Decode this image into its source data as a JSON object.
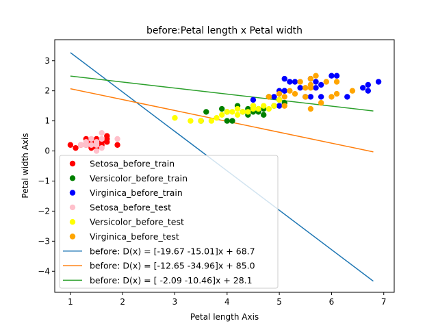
{
  "chart_data": {
    "type": "scatter",
    "title": "before:Petal length x Petal width",
    "xlabel": "Petal length Axis",
    "ylabel": "Petal width Axis",
    "xlim": [
      0.7,
      7.2
    ],
    "ylim": [
      -4.7,
      3.7
    ],
    "xticks": [
      1,
      2,
      3,
      4,
      5,
      6,
      7
    ],
    "xtick_labels": [
      "1",
      "2",
      "3",
      "4",
      "5",
      "6",
      "7"
    ],
    "yticks": [
      -4,
      -3,
      -2,
      -1,
      0,
      1,
      2,
      3
    ],
    "ytick_labels": [
      "−4",
      "−3",
      "−2",
      "−1",
      "0",
      "1",
      "2",
      "3"
    ],
    "grid": false,
    "legend_position": "lower-left",
    "scatter_series": [
      {
        "name": "Setosa_before_train",
        "color": "#ff0000",
        "points": [
          [
            1.0,
            0.2
          ],
          [
            1.1,
            0.1
          ],
          [
            1.2,
            0.2
          ],
          [
            1.3,
            0.4
          ],
          [
            1.3,
            0.2
          ],
          [
            1.4,
            0.3
          ],
          [
            1.4,
            0.1
          ],
          [
            1.5,
            0.2
          ],
          [
            1.5,
            0.4
          ],
          [
            1.6,
            0.2
          ],
          [
            1.7,
            0.4
          ],
          [
            1.7,
            0.3
          ],
          [
            1.7,
            0.5
          ],
          [
            1.9,
            0.2
          ],
          [
            1.5,
            0.1
          ],
          [
            1.6,
            0.3
          ]
        ]
      },
      {
        "name": "Versicolor_before_train",
        "color": "#008000",
        "points": [
          [
            3.5,
            1.0
          ],
          [
            3.6,
            1.3
          ],
          [
            3.9,
            1.4
          ],
          [
            4.0,
            1.0
          ],
          [
            4.0,
            1.3
          ],
          [
            4.1,
            1.0
          ],
          [
            4.2,
            1.5
          ],
          [
            4.3,
            1.3
          ],
          [
            4.4,
            1.4
          ],
          [
            4.5,
            1.5
          ],
          [
            4.5,
            1.3
          ],
          [
            4.6,
            1.4
          ],
          [
            4.7,
            1.4
          ],
          [
            4.7,
            1.2
          ],
          [
            4.8,
            1.8
          ],
          [
            4.9,
            1.5
          ],
          [
            5.0,
            1.7
          ],
          [
            5.1,
            1.6
          ],
          [
            4.6,
            1.3
          ],
          [
            4.4,
            1.2
          ]
        ]
      },
      {
        "name": "Virginica_before_train",
        "color": "#0000ff",
        "points": [
          [
            4.5,
            1.7
          ],
          [
            4.9,
            1.8
          ],
          [
            5.0,
            2.0
          ],
          [
            5.1,
            2.4
          ],
          [
            5.1,
            2.0
          ],
          [
            5.2,
            2.3
          ],
          [
            5.3,
            2.3
          ],
          [
            5.4,
            2.1
          ],
          [
            5.5,
            1.8
          ],
          [
            5.6,
            2.4
          ],
          [
            5.6,
            1.8
          ],
          [
            5.7,
            2.3
          ],
          [
            5.8,
            2.2
          ],
          [
            5.8,
            1.8
          ],
          [
            6.0,
            2.5
          ],
          [
            6.1,
            2.5
          ],
          [
            6.3,
            1.8
          ],
          [
            6.6,
            2.1
          ],
          [
            6.7,
            2.2
          ],
          [
            6.7,
            2.0
          ],
          [
            6.9,
            2.3
          ],
          [
            5.1,
            2.0
          ],
          [
            5.0,
            1.5
          ],
          [
            5.7,
            2.1
          ]
        ]
      },
      {
        "name": "Setosa_before_test",
        "color": "#ffc0cb",
        "points": [
          [
            1.2,
            0.2
          ],
          [
            1.3,
            0.3
          ],
          [
            1.4,
            0.2
          ],
          [
            1.4,
            0.4
          ],
          [
            1.5,
            0.3
          ],
          [
            1.5,
            0.2
          ],
          [
            1.6,
            0.6
          ],
          [
            1.6,
            0.1
          ],
          [
            1.6,
            0.4
          ],
          [
            1.9,
            0.4
          ],
          [
            1.3,
            0.2
          ],
          [
            1.5,
            0.0
          ]
        ]
      },
      {
        "name": "Versicolor_before_test",
        "color": "#ffff00",
        "points": [
          [
            3.0,
            1.1
          ],
          [
            3.3,
            1.0
          ],
          [
            3.5,
            1.0
          ],
          [
            3.7,
            1.0
          ],
          [
            3.8,
            1.1
          ],
          [
            3.9,
            1.2
          ],
          [
            4.0,
            1.3
          ],
          [
            4.1,
            1.3
          ],
          [
            4.2,
            1.2
          ],
          [
            4.3,
            1.3
          ],
          [
            4.4,
            1.3
          ],
          [
            4.5,
            1.5
          ],
          [
            4.6,
            1.4
          ],
          [
            4.7,
            1.5
          ],
          [
            4.8,
            1.4
          ],
          [
            4.9,
            1.5
          ],
          [
            5.0,
            1.7
          ],
          [
            4.2,
            1.4
          ],
          [
            4.5,
            1.4
          ]
        ]
      },
      {
        "name": "Virginica_before_test",
        "color": "#ffa500",
        "points": [
          [
            4.8,
            1.8
          ],
          [
            5.0,
            1.9
          ],
          [
            5.1,
            1.5
          ],
          [
            5.1,
            1.8
          ],
          [
            5.2,
            2.0
          ],
          [
            5.3,
            1.9
          ],
          [
            5.4,
            2.3
          ],
          [
            5.5,
            2.1
          ],
          [
            5.6,
            1.4
          ],
          [
            5.6,
            2.2
          ],
          [
            5.6,
            2.4
          ],
          [
            5.7,
            2.5
          ],
          [
            5.8,
            1.6
          ],
          [
            5.9,
            2.3
          ],
          [
            6.0,
            1.8
          ],
          [
            6.1,
            1.9
          ],
          [
            6.1,
            2.3
          ],
          [
            6.4,
            2.0
          ],
          [
            5.5,
            1.8
          ],
          [
            5.6,
            2.1
          ]
        ]
      }
    ],
    "line_series": [
      {
        "name": "before: D(x) = [-19.67 -15.01]x + 68.7",
        "color": "#1f77b4",
        "x": [
          1.0,
          6.8
        ],
        "y": [
          3.27,
          -4.33
        ]
      },
      {
        "name": "before: D(x) = [-12.65 -34.96]x + 85.0",
        "color": "#ff7f0e",
        "x": [
          1.0,
          6.8
        ],
        "y": [
          2.07,
          -0.03
        ]
      },
      {
        "name": "before: D(x) = [ -2.09 -10.46]x + 28.1",
        "color": "#2ca02c",
        "x": [
          1.0,
          6.8
        ],
        "y": [
          2.49,
          1.33
        ]
      }
    ]
  }
}
